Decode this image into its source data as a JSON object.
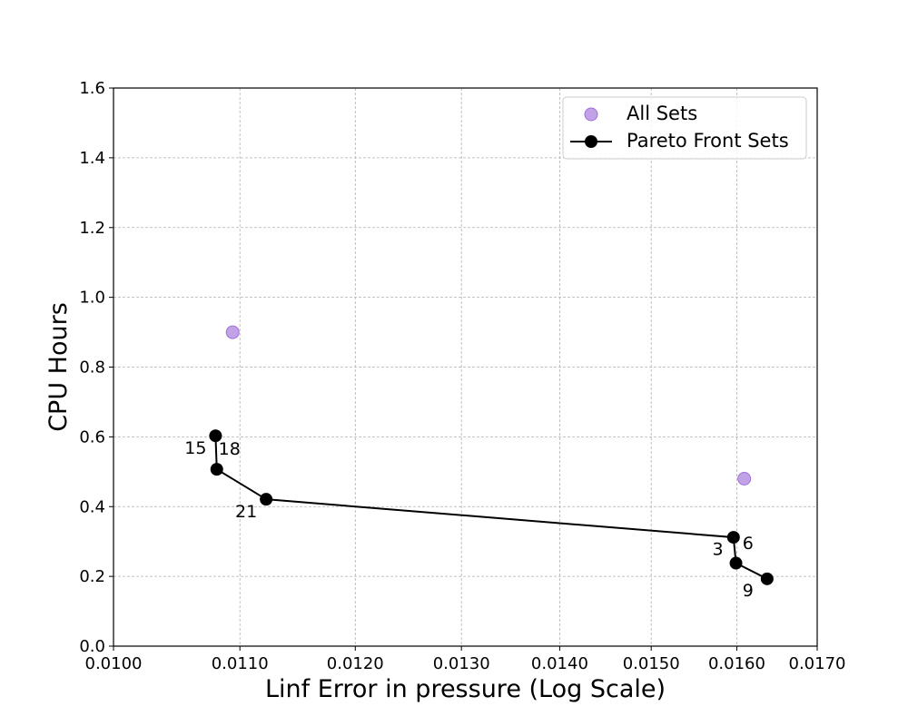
{
  "chart_data": {
    "type": "scatter",
    "xlabel": "Linf Error in pressure (Log Scale)",
    "ylabel": "CPU Hours",
    "xscale": "log",
    "xlim": [
      0.01,
      0.017
    ],
    "ylim": [
      0.0,
      1.6
    ],
    "xticks": [
      0.01,
      0.011,
      0.012,
      0.013,
      0.014,
      0.015,
      0.016,
      0.017
    ],
    "xtick_labels": [
      "0.0100",
      "0.0110",
      "0.0120",
      "0.0130",
      "0.0140",
      "0.0150",
      "0.0160",
      "0.0170"
    ],
    "yticks": [
      0.0,
      0.2,
      0.4,
      0.6,
      0.8,
      1.0,
      1.2,
      1.4,
      1.6
    ],
    "ytick_labels": [
      "0.0",
      "0.2",
      "0.4",
      "0.6",
      "0.8",
      "1.0",
      "1.2",
      "1.4",
      "1.6"
    ],
    "grid": true,
    "legend_position": "top-right",
    "series": [
      {
        "name": "All Sets",
        "style": "scatter",
        "color": "#b38be0",
        "points": [
          {
            "x": 0.01094,
            "y": 0.9
          },
          {
            "x": 0.01609,
            "y": 0.48
          }
        ]
      },
      {
        "name": "Pareto Front Sets",
        "style": "line-marker",
        "color": "#000000",
        "points": [
          {
            "x": 0.0108,
            "y": 0.603,
            "label": "15"
          },
          {
            "x": 0.01081,
            "y": 0.507,
            "label": "18"
          },
          {
            "x": 0.01122,
            "y": 0.421,
            "label": "21"
          },
          {
            "x": 0.01596,
            "y": 0.312,
            "label": "6"
          },
          {
            "x": 0.01599,
            "y": 0.238,
            "label": "3"
          },
          {
            "x": 0.01637,
            "y": 0.193,
            "label": "9"
          }
        ]
      }
    ]
  }
}
